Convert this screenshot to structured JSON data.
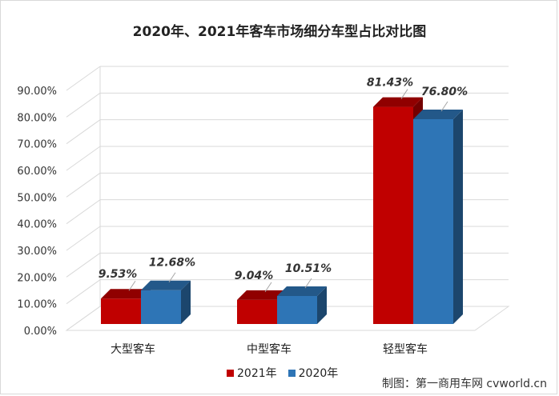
{
  "chart_data": {
    "type": "bar",
    "title": "2020年、2021年客车市场细分车型占比对比图",
    "categories": [
      "大型客车",
      "中型客车",
      "轻型客车"
    ],
    "series": [
      {
        "name": "2021年",
        "values": [
          9.53,
          9.04,
          81.43
        ],
        "labels": [
          "9.53%",
          "9.04%",
          "81.43%"
        ],
        "color": "#c00000"
      },
      {
        "name": "2020年",
        "values": [
          12.68,
          10.51,
          76.8
        ],
        "labels": [
          "12.68%",
          "10.51%",
          "76.80%"
        ],
        "color": "#2e75b6"
      }
    ],
    "ylim": [
      0,
      90
    ],
    "yticks": [
      "0.00%",
      "10.00%",
      "20.00%",
      "30.00%",
      "40.00%",
      "50.00%",
      "60.00%",
      "70.00%",
      "80.00%",
      "90.00%"
    ],
    "grid": true,
    "legend_position": "bottom"
  },
  "credit": "制图：第一商用车网 cvworld.cn"
}
